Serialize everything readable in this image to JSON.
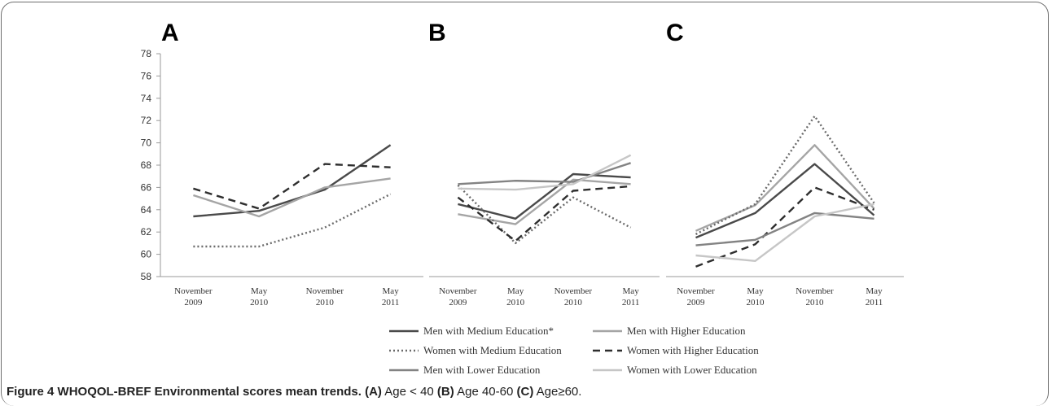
{
  "caption": {
    "label": "Figure 4",
    "title": "WHOQOL-BREF Environmental scores mean trends.",
    "a_tag": "(A)",
    "a_text": "Age < 40",
    "b_tag": "(B)",
    "b_text": "Age 40-60",
    "c_tag": "(C)",
    "c_text": "Age≥60."
  },
  "series_styles": [
    {
      "color": "#4a4a4a",
      "dash": ""
    },
    {
      "color": "#a5a5a5",
      "dash": ""
    },
    {
      "color": "#6a6a6a",
      "dash": "2,3"
    },
    {
      "color": "#2e2e2e",
      "dash": "9,6"
    },
    {
      "color": "#838383",
      "dash": ""
    },
    {
      "color": "#c6c6c6",
      "dash": ""
    }
  ],
  "chart_data": [
    {
      "type": "line",
      "panel": "A",
      "categories": [
        "November 2009",
        "May 2010",
        "November 2010",
        "May 2011"
      ],
      "ylim": [
        58,
        78
      ],
      "yticks": [
        58,
        60,
        62,
        64,
        66,
        68,
        70,
        72,
        74,
        76,
        78
      ],
      "grid": false,
      "series": [
        {
          "name": "Men with Medium Education*",
          "values": [
            63.4,
            63.9,
            65.8,
            69.8
          ]
        },
        {
          "name": "Men with Higher Education",
          "values": [
            65.3,
            63.4,
            66.0,
            66.8
          ]
        },
        {
          "name": "Women with Medium Education",
          "values": [
            60.7,
            60.7,
            62.4,
            65.4
          ]
        },
        {
          "name": "Women with Higher Education",
          "values": [
            65.9,
            64.1,
            68.1,
            67.8
          ]
        }
      ]
    },
    {
      "type": "line",
      "panel": "B",
      "categories": [
        "November 2009",
        "May 2010",
        "November 2010",
        "May 2011"
      ],
      "ylim": [
        58,
        78
      ],
      "grid": false,
      "series": [
        {
          "name": "Men with Medium Education*",
          "values": [
            64.5,
            63.2,
            67.2,
            66.9
          ]
        },
        {
          "name": "Men with Higher Education",
          "values": [
            63.6,
            62.7,
            66.7,
            66.3
          ]
        },
        {
          "name": "Women with Medium Education",
          "values": [
            66.2,
            61.0,
            65.1,
            62.4
          ]
        },
        {
          "name": "Women with Higher Education",
          "values": [
            65.1,
            61.2,
            65.7,
            66.1
          ]
        },
        {
          "name": "Men with Lower Education",
          "values": [
            66.3,
            66.6,
            66.5,
            68.2
          ]
        },
        {
          "name": "Women with Lower Education",
          "values": [
            65.9,
            65.8,
            66.3,
            68.9
          ]
        }
      ]
    },
    {
      "type": "line",
      "panel": "C",
      "categories": [
        "November 2009",
        "May 2010",
        "November 2010",
        "May 2011"
      ],
      "ylim": [
        58,
        78
      ],
      "grid": false,
      "series": [
        {
          "name": "Men with Medium Education*",
          "values": [
            61.5,
            63.7,
            68.1,
            63.5
          ]
        },
        {
          "name": "Men with Higher Education",
          "values": [
            62.1,
            64.4,
            69.8,
            64.1
          ]
        },
        {
          "name": "Women with Medium Education",
          "values": [
            61.8,
            64.5,
            72.4,
            64.6
          ]
        },
        {
          "name": "Women with Higher Education",
          "values": [
            58.9,
            60.9,
            66.0,
            64.0
          ]
        },
        {
          "name": "Men with Lower Education",
          "values": [
            60.8,
            61.3,
            63.7,
            63.2
          ]
        },
        {
          "name": "Women with Lower Education",
          "values": [
            59.9,
            59.4,
            63.4,
            64.5
          ]
        }
      ]
    }
  ]
}
